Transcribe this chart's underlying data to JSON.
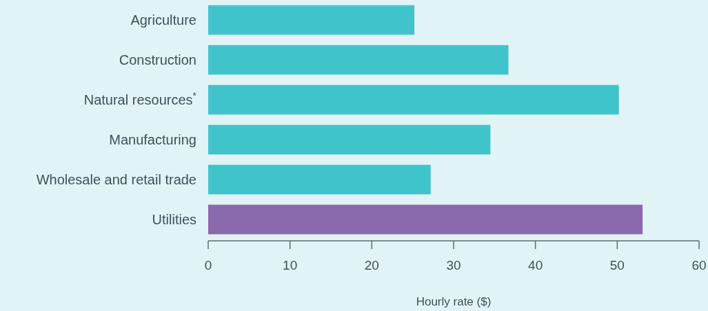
{
  "chart_data": {
    "type": "bar",
    "orientation": "horizontal",
    "xlabel": "Hourly rate ($)",
    "categories": [
      "Agriculture",
      "Construction",
      "Natural resources$^{*}$",
      "Manufacturing",
      "Wholesale and retail trade",
      "Utilities"
    ],
    "values": [
      25.2,
      36.7,
      50.2,
      34.5,
      27.2,
      53.1
    ],
    "colors": [
      "#40c4cc",
      "#40c4cc",
      "#40c4cc",
      "#40c4cc",
      "#40c4cc",
      "#8b69ad"
    ],
    "xlim": [
      0,
      60
    ],
    "xticks": [
      0,
      10,
      20,
      30,
      40,
      50,
      60
    ],
    "grid": false
  }
}
